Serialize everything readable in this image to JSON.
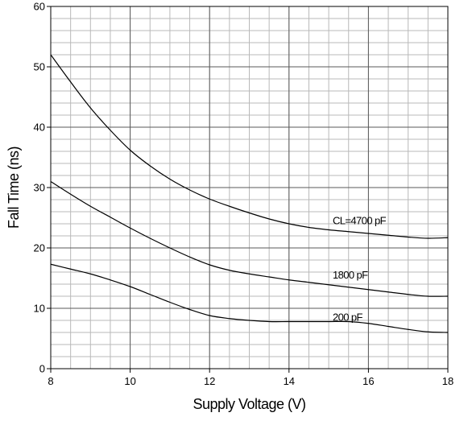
{
  "chart_data": {
    "type": "line",
    "xlabel": "Supply Voltage (V)",
    "ylabel": "Fall Time (ns)",
    "xlim": [
      8,
      18
    ],
    "ylim": [
      0,
      60
    ],
    "x_ticks": [
      8,
      10,
      12,
      14,
      16,
      18
    ],
    "y_ticks": [
      0,
      10,
      20,
      30,
      40,
      50,
      60
    ],
    "grid": true,
    "x_minor_step": 0.5,
    "y_minor_step": 2,
    "series": [
      {
        "name": "CL=4700 pF",
        "x": [
          8,
          8.5,
          9,
          9.5,
          10,
          10.5,
          11,
          11.5,
          12,
          12.5,
          13,
          13.5,
          14,
          14.5,
          15,
          15.5,
          16,
          16.5,
          17,
          17.5,
          18
        ],
        "values": [
          52.0,
          47.5,
          43.2,
          39.5,
          36.2,
          33.6,
          31.4,
          29.6,
          28.1,
          26.9,
          25.8,
          24.8,
          24.0,
          23.4,
          23.0,
          22.7,
          22.4,
          22.1,
          21.8,
          21.6,
          21.7
        ]
      },
      {
        "name": "1800 pF",
        "x": [
          8,
          8.5,
          9,
          9.5,
          10,
          10.5,
          11,
          11.5,
          12,
          12.5,
          13,
          13.5,
          14,
          14.5,
          15,
          15.5,
          16,
          16.5,
          17,
          17.5,
          18
        ],
        "values": [
          31.0,
          28.9,
          26.9,
          25.1,
          23.3,
          21.6,
          20.0,
          18.5,
          17.2,
          16.3,
          15.7,
          15.2,
          14.7,
          14.3,
          13.9,
          13.5,
          13.1,
          12.7,
          12.3,
          12.0,
          12.0
        ]
      },
      {
        "name": "200 pF",
        "x": [
          8,
          8.5,
          9,
          9.5,
          10,
          10.5,
          11,
          11.5,
          12,
          12.5,
          13,
          13.5,
          14,
          14.5,
          15,
          15.5,
          16,
          16.5,
          17,
          17.5,
          18
        ],
        "values": [
          17.3,
          16.5,
          15.7,
          14.7,
          13.6,
          12.3,
          11.0,
          9.8,
          8.8,
          8.3,
          8.0,
          7.8,
          7.8,
          7.8,
          7.8,
          7.8,
          7.5,
          7.0,
          6.5,
          6.1,
          6.0
        ]
      }
    ],
    "annotations": [
      {
        "text": "CL=4700 pF",
        "x": 15.1,
        "y": 24.5
      },
      {
        "text": "1800 pF",
        "x": 15.1,
        "y": 15.5
      },
      {
        "text": "200 pF",
        "x": 15.1,
        "y": 8.5
      }
    ]
  }
}
